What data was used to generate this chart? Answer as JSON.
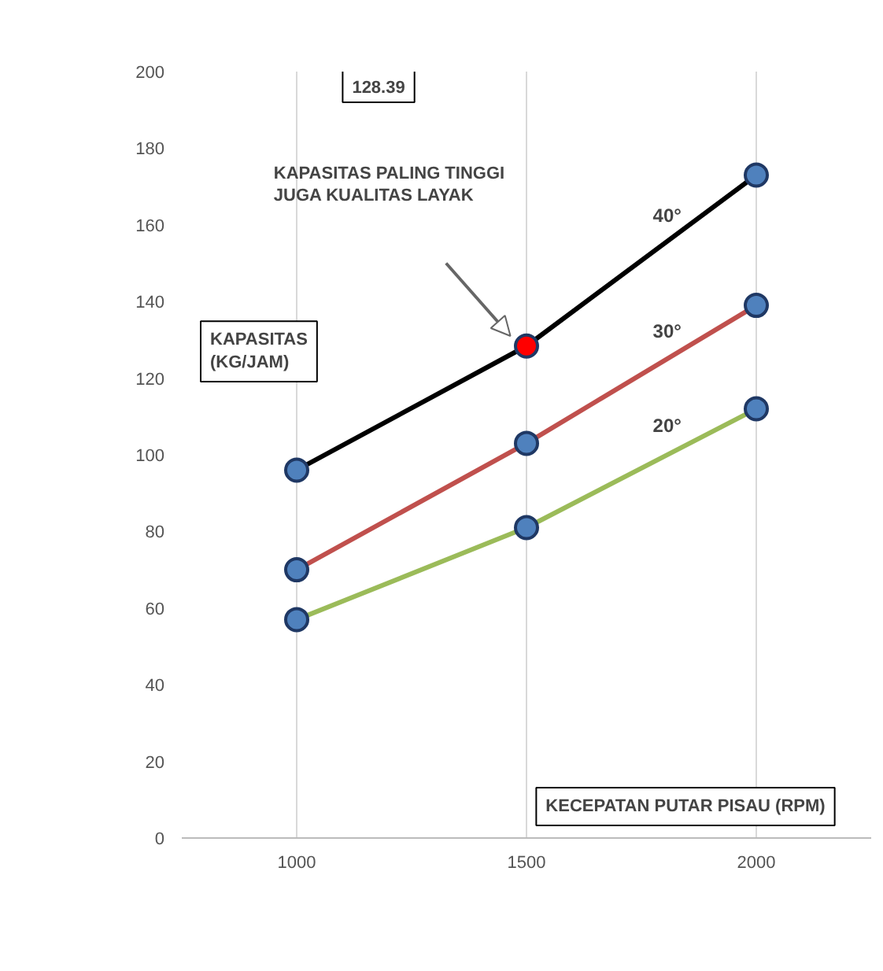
{
  "chart_data": {
    "type": "line",
    "xlabel": "KECEPATAN PUTAR PISAU (RPM)",
    "ylabel": "KAPASITAS (KG/JAM)",
    "categories": [
      "1000",
      "1500",
      "2000"
    ],
    "series": [
      {
        "name": "40°",
        "color": "#000000",
        "values": [
          96,
          128.39,
          173
        ],
        "colors": [
          "#4f81bd",
          "#ff0000",
          "#4f81bd"
        ]
      },
      {
        "name": "30°",
        "color": "#c0504d",
        "values": [
          70,
          103,
          139
        ]
      },
      {
        "name": "20°",
        "color": "#9bbb59",
        "values": [
          57,
          81,
          112
        ]
      }
    ],
    "ylim": [
      0,
      200
    ],
    "yticks": [
      0,
      20,
      40,
      60,
      80,
      100,
      120,
      140,
      160,
      180,
      200
    ],
    "grid": "x",
    "marker": "circle",
    "line_style": "solid",
    "annotations": [
      "128.39",
      "KAPASITAS PALING TINGGI\nJUGA KUALITAS LAYAK"
    ]
  }
}
